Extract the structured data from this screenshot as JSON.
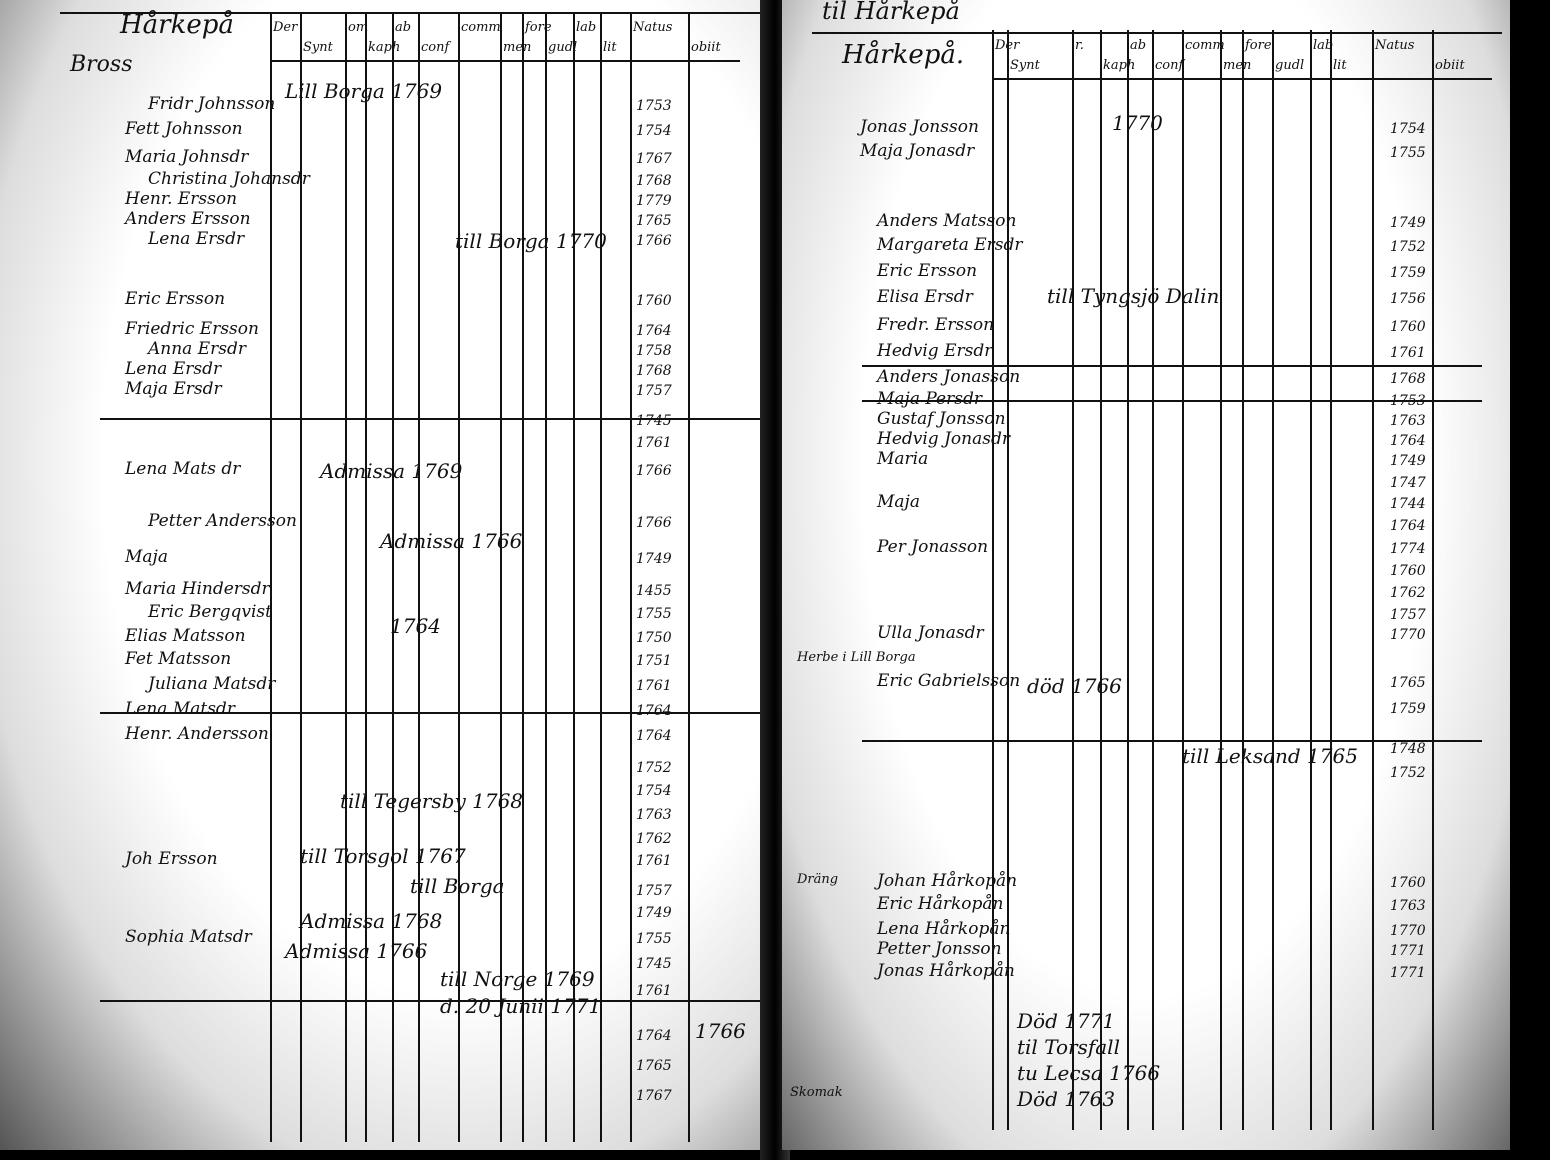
{
  "left_page": {
    "heading": "Hårkepå",
    "side_label": "Bross",
    "columns": [
      "Der",
      "Synt",
      "om",
      "kaph",
      "ab",
      "conf",
      "comm",
      "men",
      "fore",
      "gudl",
      "lab",
      "lit",
      "Natus",
      "obiit"
    ],
    "entries": [
      {
        "name": "Fridr Johnsson",
        "year": "1753"
      },
      {
        "name": "Fett Johnsson",
        "year": "1754"
      },
      {
        "name": "Maria Johnsdr",
        "year": "1767"
      },
      {
        "name": "Christina Johansdr",
        "year": "1768"
      },
      {
        "name": "Henr. Ersson",
        "year": "1779"
      },
      {
        "name": "Anders Ersson",
        "year": "1765"
      },
      {
        "name": "Lena Ersdr",
        "year": "1766"
      },
      {
        "name": "Eric Ersson",
        "year": "1760"
      },
      {
        "name": "Friedric Ersson",
        "year": "1764"
      },
      {
        "name": "Anna Ersdr",
        "year": "1758"
      },
      {
        "name": "Lena Ersdr",
        "year": "1768"
      },
      {
        "name": "Maja Ersdr",
        "year": "1757"
      },
      {
        "name": "",
        "year": "1745"
      },
      {
        "name": "",
        "year": "1761"
      },
      {
        "name": "Lena Mats dr",
        "year": "1766"
      },
      {
        "name": "Petter Andersson",
        "year": "1766"
      },
      {
        "name": "Maja",
        "year": "1749"
      },
      {
        "name": "Maria Hindersdr",
        "year": "1455"
      },
      {
        "name": "Eric Bergqvist",
        "year": "1755"
      },
      {
        "name": "Elias Matsson",
        "year": "1750"
      },
      {
        "name": "Fet Matsson",
        "year": "1751"
      },
      {
        "name": "Juliana Matsdr",
        "year": "1761"
      },
      {
        "name": "Lena Matsdr",
        "year": "1764"
      },
      {
        "name": "Henr. Andersson",
        "year": "1764"
      },
      {
        "name": "",
        "year": "1752"
      },
      {
        "name": "",
        "year": "1754"
      },
      {
        "name": "",
        "year": "1763"
      },
      {
        "name": "",
        "year": "1762"
      },
      {
        "name": "Joh Ersson",
        "year": "1761"
      },
      {
        "name": "",
        "year": "1757"
      },
      {
        "name": "",
        "year": "1749"
      },
      {
        "name": "Sophia Matsdr",
        "year": "1755"
      },
      {
        "name": "",
        "year": "1745"
      },
      {
        "name": "",
        "year": "1761"
      },
      {
        "name": "",
        "year": "1764"
      },
      {
        "name": "",
        "year": "1765"
      },
      {
        "name": "",
        "year": "1767"
      }
    ],
    "annotations": [
      "Lill Borga 1769",
      "till Borga 1770",
      "Admissa 1769",
      "Admissa 1766",
      "till Tegersby 1768",
      "till Torsgol 1767",
      "till Borga",
      "Admissa 1768",
      "till Norge 1769",
      "d. 20 Junii 1771",
      "1766",
      "1764",
      "Admissa 1766"
    ]
  },
  "right_page": {
    "top_title": "til Hårkepå",
    "heading": "Hårkepå.",
    "columns": [
      "Der",
      "Synt",
      "r.",
      "kaph",
      "ab",
      "conf",
      "comm",
      "men",
      "fore",
      "gudl",
      "lab",
      "lit",
      "Natus",
      "obiit"
    ],
    "entries": [
      {
        "name": "Jonas Jonsson",
        "year": "1754"
      },
      {
        "name": "Maja Jonasdr",
        "year": "1755"
      },
      {
        "name": "Anders Matsson",
        "year": "1749"
      },
      {
        "name": "Margareta Ersdr",
        "year": "1752"
      },
      {
        "name": "Eric Ersson",
        "year": "1759"
      },
      {
        "name": "Elisa Ersdr",
        "year": "1756"
      },
      {
        "name": "Fredr. Ersson",
        "year": "1760"
      },
      {
        "name": "Hedvig Ersdr",
        "year": "1761"
      },
      {
        "name": "Anders Jonasson",
        "year": "1768"
      },
      {
        "name": "Maja Persdr",
        "year": "1753"
      },
      {
        "name": "Gustaf Jonsson",
        "year": "1763"
      },
      {
        "name": "Hedvig Jonasdr",
        "year": "1764"
      },
      {
        "name": "Maria",
        "year": "1749"
      },
      {
        "name": "",
        "year": "1747"
      },
      {
        "name": "Maja",
        "year": "1744"
      },
      {
        "name": "",
        "year": "1764"
      },
      {
        "name": "Per Jonasson",
        "year": "1774"
      },
      {
        "name": "",
        "year": "1760"
      },
      {
        "name": "",
        "year": "1762"
      },
      {
        "name": "",
        "year": "1757"
      },
      {
        "name": "Ulla Jonasdr",
        "year": "1770"
      },
      {
        "name": "Eric Gabrielsson",
        "year": "1765"
      },
      {
        "name": "",
        "year": "1759"
      },
      {
        "name": "",
        "year": "1748"
      },
      {
        "name": "",
        "year": "1752"
      },
      {
        "name": "Johan Hårkopån",
        "year": "1760"
      },
      {
        "name": "Eric Hårkopån",
        "year": "1763"
      },
      {
        "name": "Lena Hårkopån",
        "year": "1770"
      },
      {
        "name": "Petter Jonsson",
        "year": "1771"
      },
      {
        "name": "Jonas Hårkopån",
        "year": "1771"
      }
    ],
    "annotations": [
      "1770",
      "till Tyngsjö Dalin",
      "död 1766",
      "till Leksand 1765",
      "Död 1771",
      "til Torsfall",
      "tu Lecsa 1766",
      "Död 1763",
      "Herbe i Lill Borga",
      "Dräng",
      "Skomak"
    ]
  }
}
